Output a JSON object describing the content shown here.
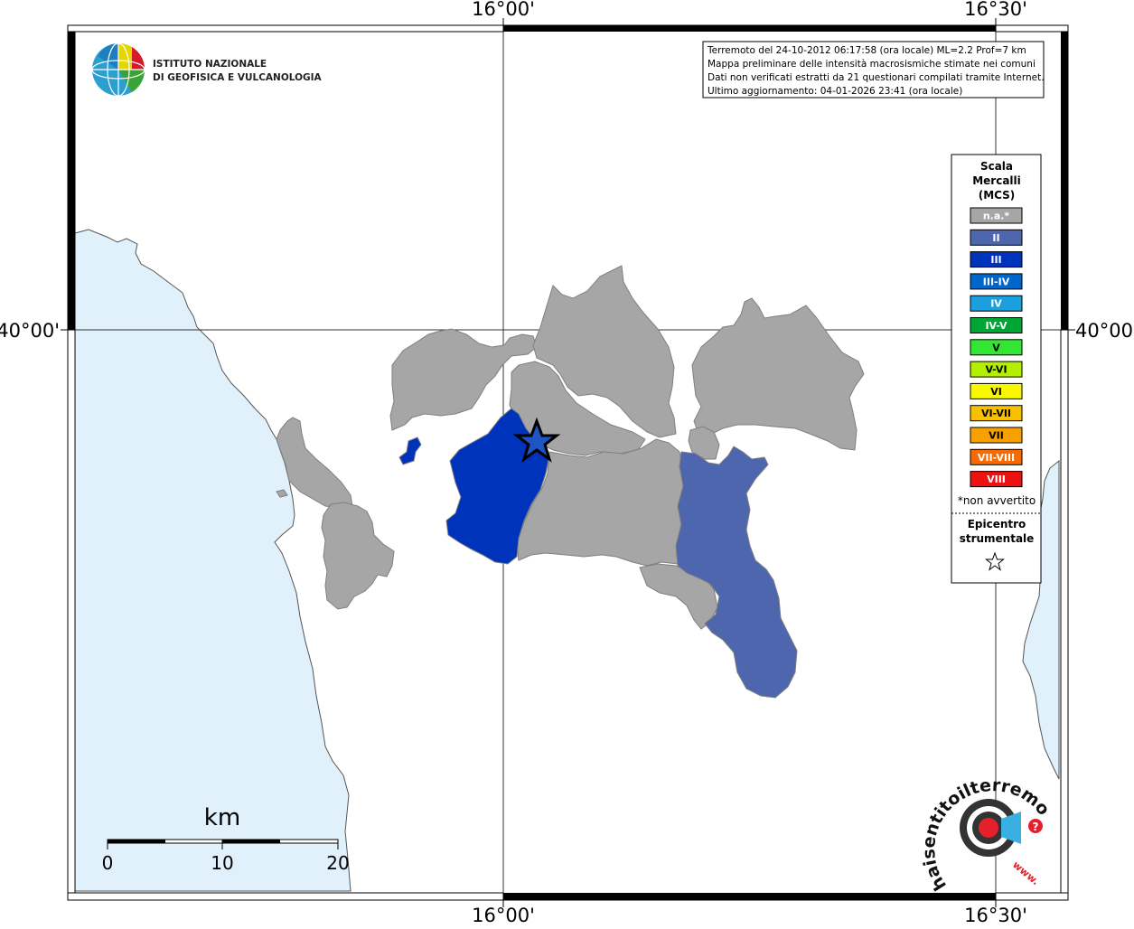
{
  "coordinates": {
    "top": [
      "16°00'",
      "16°30'"
    ],
    "bottom": [
      "16°00'",
      "16°30'"
    ],
    "left": [
      "40°00'"
    ],
    "right": [
      "40°00'"
    ]
  },
  "institute": {
    "line1": "ISTITUTO NAZIONALE",
    "line2": "DI GEOFISICA E VULCANOLOGIA"
  },
  "info_box": {
    "lines": [
      "Terremoto del 24-10-2012 06:17:58 (ora locale) ML=2.2 Prof=7 km",
      "Mappa preliminare delle intensità macrosismiche stimate nei comuni",
      "Dati non verificati estratti da 21 questionari compilati tramite Internet.",
      "Ultimo aggiornamento: 04-01-2026 23:41 (ora locale)"
    ]
  },
  "legend": {
    "title": [
      "Scala",
      "Mercalli",
      "(MCS)"
    ],
    "items": [
      {
        "label": "n.a.*",
        "color": "#a6a6a6"
      },
      {
        "label": "II",
        "color": "#4d66ad"
      },
      {
        "label": "III",
        "color": "#0033bb"
      },
      {
        "label": "III-IV",
        "color": "#0066cc"
      },
      {
        "label": "IV",
        "color": "#1a9fdf"
      },
      {
        "label": "IV-V",
        "color": "#00a633"
      },
      {
        "label": "V",
        "color": "#33e633"
      },
      {
        "label": "V-VI",
        "color": "#b3f000"
      },
      {
        "label": "VI",
        "color": "#f7f700"
      },
      {
        "label": "VI-VII",
        "color": "#f7c000"
      },
      {
        "label": "VII",
        "color": "#f7a000"
      },
      {
        "label": "VII-VIII",
        "color": "#f76a00"
      },
      {
        "label": "VIII",
        "color": "#ee1111"
      }
    ],
    "note": "*non avvertito",
    "epicenter": [
      "Epicentro",
      "strumentale"
    ]
  },
  "scale_bar": {
    "unit": "km",
    "labels": [
      "0",
      "10",
      "20"
    ]
  },
  "colors": {
    "sea": "#e0f1fb",
    "not_felt": "#a6a6a6",
    "intensity_II": "#4d66ad",
    "intensity_III": "#0033bb"
  },
  "hsit_logo": {
    "text": "haisentitoilterremoto.it",
    "www": "www."
  }
}
